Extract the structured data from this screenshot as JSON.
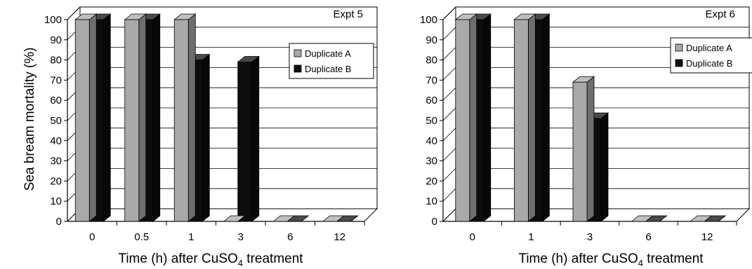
{
  "figure": {
    "ylabel": "Sea bream mortality (%)",
    "xlabel_prefix": "Time (h) after CuSO",
    "xlabel_sub": "4",
    "xlabel_suffix": " treatment"
  },
  "colors": {
    "duplicate_a": "#a9a9a9",
    "duplicate_b": "#0d0d0d"
  },
  "chart_data": [
    {
      "type": "bar",
      "title": "Expt 5",
      "categories": [
        "0",
        "0.5",
        "1",
        "3",
        "6",
        "12"
      ],
      "series": [
        {
          "name": "Duplicate A",
          "values": [
            100,
            100,
            100,
            0,
            0,
            0
          ]
        },
        {
          "name": "Duplicate B",
          "values": [
            100,
            100,
            80,
            79,
            0,
            0
          ]
        }
      ],
      "ylim": [
        0,
        100
      ],
      "yticks": [
        "0",
        "10",
        "20",
        "30",
        "40",
        "50",
        "60",
        "70",
        "80",
        "90",
        "100"
      ],
      "grid": true,
      "legend": "top-right"
    },
    {
      "type": "bar",
      "title": "Expt 6",
      "categories": [
        "0",
        "1",
        "3",
        "6",
        "12"
      ],
      "series": [
        {
          "name": "Duplicate A",
          "values": [
            100,
            100,
            69,
            0,
            0
          ]
        },
        {
          "name": "Duplicate B",
          "values": [
            100,
            100,
            51,
            0,
            0
          ]
        }
      ],
      "ylim": [
        0,
        100
      ],
      "yticks": [
        "0",
        "10",
        "20",
        "30",
        "40",
        "50",
        "60",
        "70",
        "80",
        "90",
        "100"
      ],
      "grid": true,
      "legend": "top-right"
    }
  ]
}
